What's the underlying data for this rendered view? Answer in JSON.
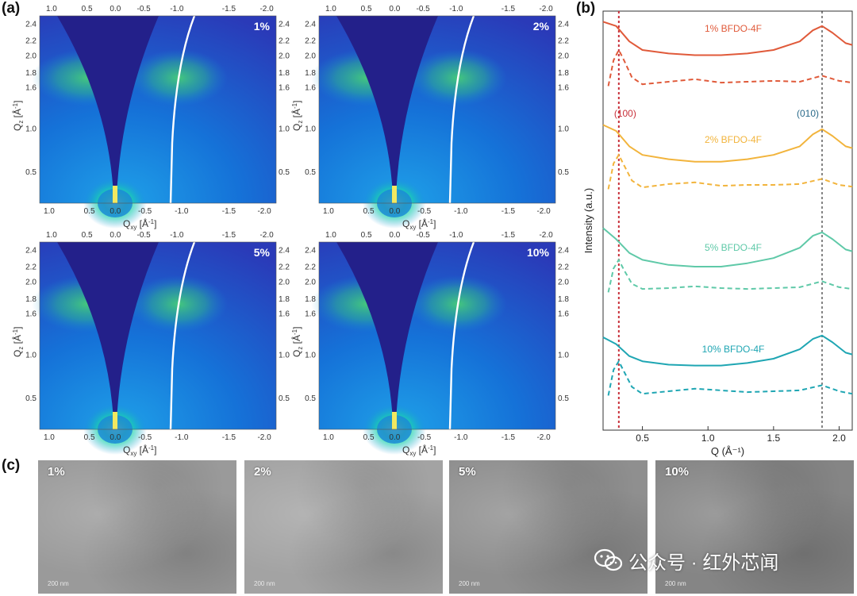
{
  "panels": {
    "a": "(a)",
    "b": "(b)",
    "c": "(c)"
  },
  "giwaxs": {
    "x_axis_label": "Q",
    "x_axis_sub": "xy",
    "x_axis_unit": "[Å",
    "x_axis_unit_end": "]",
    "y_axis_label": "Q",
    "y_axis_sub": "z",
    "y_axis_unit": "[Å",
    "y_axis_unit_end": "]",
    "x_ticks": [
      "1.0",
      "0.5",
      "0.0",
      "-0.5",
      "-1.0",
      "-1.5",
      "-2.0"
    ],
    "y_ticks": [
      "0.5",
      "1.0",
      "1.6",
      "1.8",
      "2.0",
      "2.2",
      "2.4"
    ],
    "maps": [
      {
        "label": "1%"
      },
      {
        "label": "2%"
      },
      {
        "label": "5%"
      },
      {
        "label": "10%"
      }
    ]
  },
  "chart_data": {
    "type": "line",
    "xlabel": "Q (Å⁻¹)",
    "ylabel": "Intensity (a.u.)",
    "xlim": [
      0.2,
      2.1
    ],
    "x_ticks": [
      "0.5",
      "1.0",
      "1.5",
      "2.0"
    ],
    "x_tick_values": [
      0.5,
      1.0,
      1.5,
      2.0
    ],
    "peak_labels": [
      {
        "text": "(100)",
        "q": 0.32,
        "color": "#c8303a"
      },
      {
        "text": "(010)",
        "q": 1.87,
        "color": "#2a6a8a"
      }
    ],
    "series": [
      {
        "name": "1% BFDO-4F",
        "color": "#e05a3a",
        "solid_q": [
          0.2,
          0.3,
          0.4,
          0.5,
          0.7,
          0.9,
          1.1,
          1.3,
          1.5,
          1.7,
          1.8,
          1.87,
          1.95,
          2.05,
          2.1
        ],
        "solid_i": [
          0.95,
          0.9,
          0.72,
          0.62,
          0.58,
          0.56,
          0.56,
          0.58,
          0.62,
          0.72,
          0.85,
          0.9,
          0.82,
          0.7,
          0.68
        ],
        "dash_q": [
          0.24,
          0.28,
          0.32,
          0.36,
          0.42,
          0.5,
          0.7,
          0.9,
          1.1,
          1.3,
          1.5,
          1.7,
          1.87,
          2.0,
          2.1
        ],
        "dash_i": [
          0.2,
          0.5,
          0.62,
          0.5,
          0.3,
          0.22,
          0.25,
          0.28,
          0.24,
          0.25,
          0.26,
          0.25,
          0.32,
          0.26,
          0.24
        ]
      },
      {
        "name": "2% BFDO-4F",
        "color": "#f2b43c",
        "solid_q": [
          0.2,
          0.3,
          0.4,
          0.5,
          0.7,
          0.9,
          1.1,
          1.3,
          1.5,
          1.7,
          1.8,
          1.87,
          1.95,
          2.05,
          2.1
        ],
        "solid_i": [
          0.95,
          0.88,
          0.7,
          0.6,
          0.55,
          0.52,
          0.52,
          0.55,
          0.6,
          0.7,
          0.84,
          0.9,
          0.82,
          0.7,
          0.68
        ],
        "dash_q": [
          0.24,
          0.28,
          0.32,
          0.36,
          0.42,
          0.5,
          0.7,
          0.9,
          1.1,
          1.3,
          1.5,
          1.7,
          1.87,
          2.0,
          2.1
        ],
        "dash_i": [
          0.2,
          0.5,
          0.6,
          0.48,
          0.3,
          0.22,
          0.26,
          0.28,
          0.24,
          0.25,
          0.25,
          0.26,
          0.32,
          0.25,
          0.23
        ]
      },
      {
        "name": "5% BFDO-4F",
        "color": "#5fc9a8",
        "solid_q": [
          0.2,
          0.3,
          0.4,
          0.5,
          0.7,
          0.9,
          1.1,
          1.3,
          1.5,
          1.7,
          1.8,
          1.87,
          1.95,
          2.05,
          2.1
        ],
        "solid_i": [
          0.95,
          0.82,
          0.66,
          0.58,
          0.52,
          0.5,
          0.5,
          0.54,
          0.6,
          0.72,
          0.86,
          0.9,
          0.82,
          0.7,
          0.68
        ],
        "dash_q": [
          0.24,
          0.28,
          0.32,
          0.36,
          0.42,
          0.5,
          0.7,
          0.9,
          1.1,
          1.3,
          1.5,
          1.7,
          1.87,
          2.0,
          2.1
        ],
        "dash_i": [
          0.2,
          0.48,
          0.58,
          0.46,
          0.3,
          0.24,
          0.25,
          0.27,
          0.25,
          0.24,
          0.25,
          0.26,
          0.33,
          0.26,
          0.24
        ]
      },
      {
        "name": "10% BFDO-4F",
        "color": "#1fa6b3",
        "solid_q": [
          0.2,
          0.3,
          0.4,
          0.5,
          0.7,
          0.9,
          1.1,
          1.3,
          1.5,
          1.7,
          1.8,
          1.87,
          1.95,
          2.05,
          2.1
        ],
        "solid_i": [
          0.88,
          0.8,
          0.66,
          0.6,
          0.56,
          0.55,
          0.55,
          0.58,
          0.63,
          0.74,
          0.86,
          0.9,
          0.82,
          0.7,
          0.68
        ],
        "dash_q": [
          0.24,
          0.28,
          0.32,
          0.36,
          0.42,
          0.5,
          0.7,
          0.9,
          1.1,
          1.3,
          1.5,
          1.7,
          1.87,
          2.0,
          2.1
        ],
        "dash_i": [
          0.2,
          0.5,
          0.6,
          0.48,
          0.3,
          0.22,
          0.25,
          0.28,
          0.26,
          0.24,
          0.25,
          0.26,
          0.32,
          0.25,
          0.22
        ]
      }
    ]
  },
  "tem": [
    {
      "label": "1%",
      "scale": "200 nm",
      "tone": "#9a9a9a"
    },
    {
      "label": "2%",
      "scale": "200 nm",
      "tone": "#a3a3a3"
    },
    {
      "label": "5%",
      "scale": "200 nm",
      "tone": "#8f8f8f"
    },
    {
      "label": "10%",
      "scale": "200 nm",
      "tone": "#858585"
    }
  ],
  "watermark": {
    "text": "公众号 · 红外芯闻",
    "icon": "wechat-icon"
  }
}
